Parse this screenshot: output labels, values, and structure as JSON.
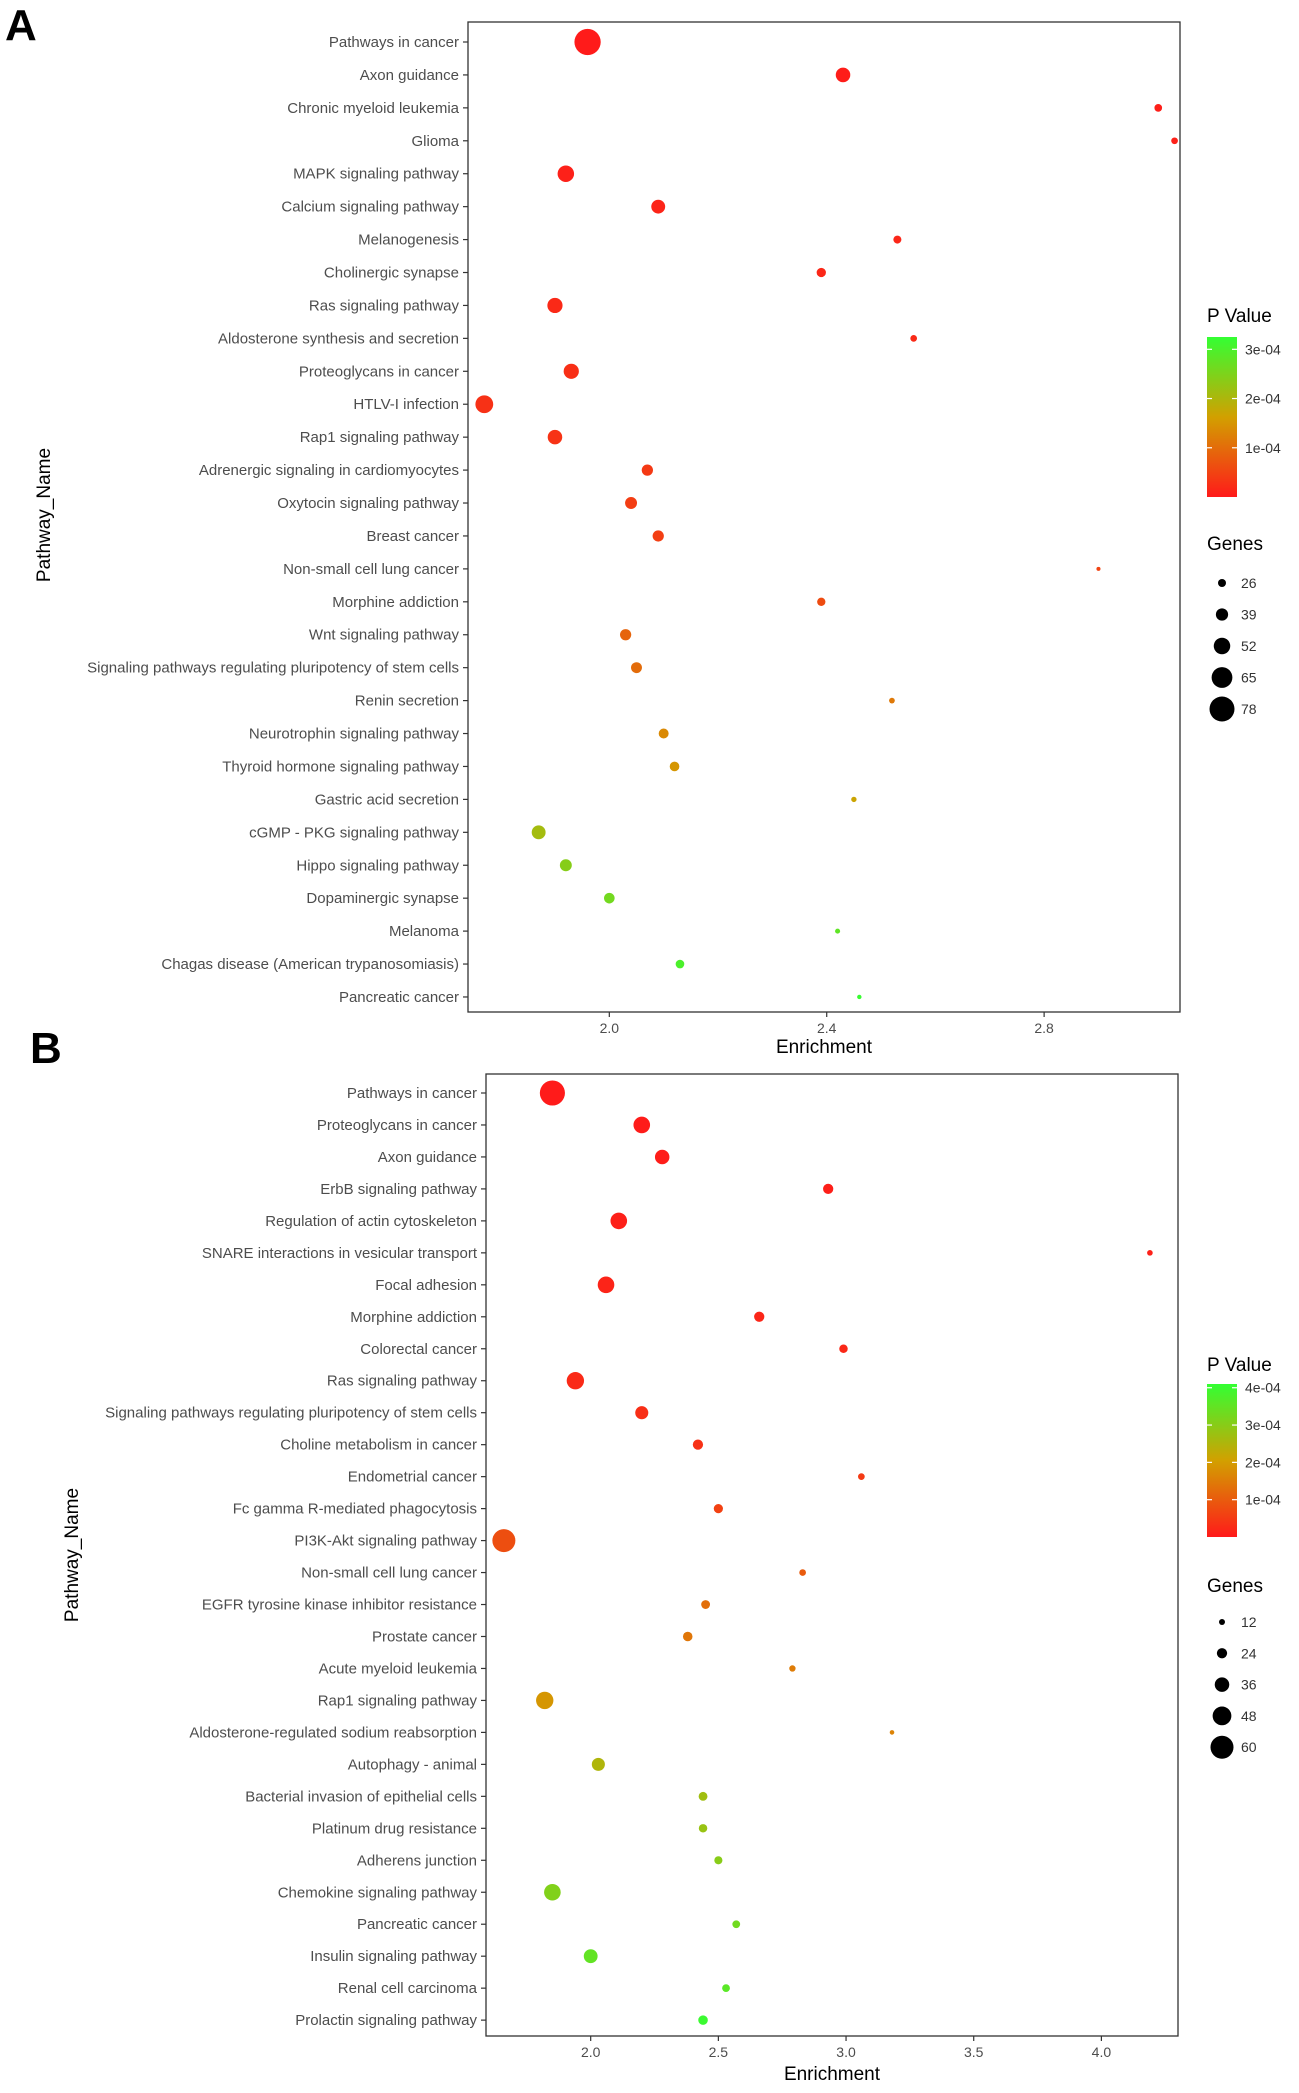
{
  "chart_data": [
    {
      "panel": "A",
      "type": "scatter",
      "title": "",
      "xlabel": "Enrichment",
      "ylabel": "Pathway_Name",
      "xlim": [
        1.74,
        3.05
      ],
      "xticks": [
        2.0,
        2.4,
        2.8
      ],
      "xtick_labels": [
        "2.0",
        "2.4",
        "2.8"
      ],
      "grid": false,
      "legend_position": "right",
      "color_legend": {
        "title": "P Value",
        "low_color": "#ff1a1a",
        "mid_color": "#d2a000",
        "high_color": "#33ff33",
        "pmax": 0.000325,
        "ticks": [
          0.0001,
          0.0002,
          0.0003
        ],
        "labels": [
          "1e-04",
          "2e-04",
          "3e-04"
        ]
      },
      "size_legend": {
        "title": "Genes",
        "values": [
          26,
          39,
          52,
          65,
          78
        ],
        "labels": [
          "26",
          "39",
          "52",
          "65",
          "78"
        ]
      },
      "points": [
        {
          "pathway": "Pathways in cancer",
          "enrichment": 1.96,
          "genes": 82,
          "p_value": 1e-06
        },
        {
          "pathway": "Axon guidance",
          "enrichment": 2.43,
          "genes": 46,
          "p_value": 4e-06
        },
        {
          "pathway": "Chronic myeloid leukemia",
          "enrichment": 3.01,
          "genes": 25,
          "p_value": 6e-06
        },
        {
          "pathway": "Glioma",
          "enrichment": 3.04,
          "genes": 22,
          "p_value": 8e-06
        },
        {
          "pathway": "MAPK signaling pathway",
          "enrichment": 1.92,
          "genes": 52,
          "p_value": 9e-06
        },
        {
          "pathway": "Calcium signaling pathway",
          "enrichment": 2.09,
          "genes": 44,
          "p_value": 1.2e-05
        },
        {
          "pathway": "Melanogenesis",
          "enrichment": 2.53,
          "genes": 26,
          "p_value": 1.4e-05
        },
        {
          "pathway": "Cholinergic synapse",
          "enrichment": 2.39,
          "genes": 30,
          "p_value": 1.6e-05
        },
        {
          "pathway": "Ras signaling pathway",
          "enrichment": 1.9,
          "genes": 48,
          "p_value": 1.8e-05
        },
        {
          "pathway": "Aldosterone synthesis and secretion",
          "enrichment": 2.56,
          "genes": 22,
          "p_value": 2e-05
        },
        {
          "pathway": "Proteoglycans in cancer",
          "enrichment": 1.93,
          "genes": 48,
          "p_value": 2.5e-05
        },
        {
          "pathway": "HTLV-I infection",
          "enrichment": 1.77,
          "genes": 56,
          "p_value": 2.8e-05
        },
        {
          "pathway": "Rap1 signaling pathway",
          "enrichment": 1.9,
          "genes": 46,
          "p_value": 3e-05
        },
        {
          "pathway": "Adrenergic signaling in cardiomyocytes",
          "enrichment": 2.07,
          "genes": 36,
          "p_value": 3.8e-05
        },
        {
          "pathway": "Oxytocin signaling pathway",
          "enrichment": 2.04,
          "genes": 38,
          "p_value": 4.2e-05
        },
        {
          "pathway": "Breast cancer",
          "enrichment": 2.09,
          "genes": 36,
          "p_value": 4.5e-05
        },
        {
          "pathway": "Non-small cell lung cancer",
          "enrichment": 2.9,
          "genes": 14,
          "p_value": 5e-05
        },
        {
          "pathway": "Morphine addiction",
          "enrichment": 2.39,
          "genes": 27,
          "p_value": 6e-05
        },
        {
          "pathway": "Wnt signaling pathway",
          "enrichment": 2.03,
          "genes": 36,
          "p_value": 9e-05
        },
        {
          "pathway": "Signaling pathways regulating pluripotency of stem cells",
          "enrichment": 2.05,
          "genes": 35,
          "p_value": 0.0001
        },
        {
          "pathway": "Renin secretion",
          "enrichment": 2.52,
          "genes": 19,
          "p_value": 0.000115
        },
        {
          "pathway": "Neurotrophin signaling pathway",
          "enrichment": 2.1,
          "genes": 32,
          "p_value": 0.000135
        },
        {
          "pathway": "Thyroid hormone signaling pathway",
          "enrichment": 2.12,
          "genes": 31,
          "p_value": 0.00015
        },
        {
          "pathway": "Gastric acid secretion",
          "enrichment": 2.45,
          "genes": 18,
          "p_value": 0.00017
        },
        {
          "pathway": "cGMP - PKG signaling pathway",
          "enrichment": 1.87,
          "genes": 44,
          "p_value": 0.00021
        },
        {
          "pathway": "Hippo signaling pathway",
          "enrichment": 1.92,
          "genes": 38,
          "p_value": 0.00024
        },
        {
          "pathway": "Dopaminergic synapse",
          "enrichment": 2.0,
          "genes": 34,
          "p_value": 0.00026
        },
        {
          "pathway": "Melanoma",
          "enrichment": 2.42,
          "genes": 17,
          "p_value": 0.00028
        },
        {
          "pathway": "Chagas disease (American trypanosomiasis)",
          "enrichment": 2.13,
          "genes": 28,
          "p_value": 0.0003
        },
        {
          "pathway": "Pancreatic cancer",
          "enrichment": 2.46,
          "genes": 15,
          "p_value": 0.00032
        }
      ]
    },
    {
      "panel": "B",
      "type": "scatter",
      "title": "",
      "xlabel": "Enrichment",
      "ylabel": "Pathway_Name",
      "xlim": [
        1.59,
        4.3
      ],
      "xticks": [
        2.0,
        2.5,
        3.0,
        3.5,
        4.0
      ],
      "xtick_labels": [
        "2.0",
        "2.5",
        "3.0",
        "3.5",
        "4.0"
      ],
      "grid": false,
      "legend_position": "right",
      "color_legend": {
        "title": "P Value",
        "low_color": "#ff1a1a",
        "mid_color": "#d2a000",
        "high_color": "#33ff33",
        "pmax": 0.00041,
        "ticks": [
          0.0001,
          0.0002,
          0.0003,
          0.0004
        ],
        "labels": [
          "1e-04",
          "2e-04",
          "3e-04",
          "4e-04"
        ]
      },
      "size_legend": {
        "title": "Genes",
        "values": [
          12,
          24,
          36,
          48,
          60
        ],
        "labels": [
          "12",
          "24",
          "36",
          "48",
          "60"
        ]
      },
      "points": [
        {
          "pathway": "Pathways in cancer",
          "enrichment": 1.85,
          "genes": 66,
          "p_value": 1e-06
        },
        {
          "pathway": "Proteoglycans in cancer",
          "enrichment": 2.2,
          "genes": 42,
          "p_value": 3e-06
        },
        {
          "pathway": "Axon guidance",
          "enrichment": 2.28,
          "genes": 36,
          "p_value": 5e-06
        },
        {
          "pathway": "ErbB signaling pathway",
          "enrichment": 2.93,
          "genes": 24,
          "p_value": 7e-06
        },
        {
          "pathway": "Regulation of actin cytoskeleton",
          "enrichment": 2.11,
          "genes": 42,
          "p_value": 9e-06
        },
        {
          "pathway": "SNARE interactions in vesicular transport",
          "enrichment": 4.19,
          "genes": 11,
          "p_value": 1.1e-05
        },
        {
          "pathway": "Focal adhesion",
          "enrichment": 2.06,
          "genes": 42,
          "p_value": 1.5e-05
        },
        {
          "pathway": "Morphine addiction",
          "enrichment": 2.66,
          "genes": 24,
          "p_value": 1.8e-05
        },
        {
          "pathway": "Colorectal cancer",
          "enrichment": 2.99,
          "genes": 19,
          "p_value": 2.2e-05
        },
        {
          "pathway": "Ras signaling pathway",
          "enrichment": 1.94,
          "genes": 44,
          "p_value": 2.5e-05
        },
        {
          "pathway": "Signaling pathways regulating pluripotency of stem cells",
          "enrichment": 2.2,
          "genes": 32,
          "p_value": 3e-05
        },
        {
          "pathway": "Choline metabolism in cancer",
          "enrichment": 2.42,
          "genes": 24,
          "p_value": 3.5e-05
        },
        {
          "pathway": "Endometrial cancer",
          "enrichment": 3.06,
          "genes": 14,
          "p_value": 5e-05
        },
        {
          "pathway": "Fc gamma R-mediated phagocytosis",
          "enrichment": 2.5,
          "genes": 21,
          "p_value": 6e-05
        },
        {
          "pathway": "PI3K-Akt signaling pathway",
          "enrichment": 1.66,
          "genes": 60,
          "p_value": 8e-05
        },
        {
          "pathway": "Non-small cell lung cancer",
          "enrichment": 2.83,
          "genes": 14,
          "p_value": 0.0001
        },
        {
          "pathway": "EGFR tyrosine kinase inhibitor resistance",
          "enrichment": 2.45,
          "genes": 20,
          "p_value": 0.00013
        },
        {
          "pathway": "Prostate cancer",
          "enrichment": 2.38,
          "genes": 22,
          "p_value": 0.00014
        },
        {
          "pathway": "Acute myeloid leukemia",
          "enrichment": 2.79,
          "genes": 13,
          "p_value": 0.00015
        },
        {
          "pathway": "Rap1 signaling pathway",
          "enrichment": 1.82,
          "genes": 44,
          "p_value": 0.00019
        },
        {
          "pathway": "Aldosterone-regulated sodium reabsorption",
          "enrichment": 3.18,
          "genes": 8,
          "p_value": 0.00016
        },
        {
          "pathway": "Autophagy - animal",
          "enrichment": 2.03,
          "genes": 32,
          "p_value": 0.00025
        },
        {
          "pathway": "Bacterial invasion of epithelial cells",
          "enrichment": 2.44,
          "genes": 20,
          "p_value": 0.00027
        },
        {
          "pathway": "Platinum drug resistance",
          "enrichment": 2.44,
          "genes": 19,
          "p_value": 0.00028
        },
        {
          "pathway": "Adherens junction",
          "enrichment": 2.5,
          "genes": 18,
          "p_value": 0.0003
        },
        {
          "pathway": "Chemokine signaling pathway",
          "enrichment": 1.85,
          "genes": 42,
          "p_value": 0.00031
        },
        {
          "pathway": "Pancreatic cancer",
          "enrichment": 2.57,
          "genes": 17,
          "p_value": 0.00033
        },
        {
          "pathway": "Insulin signaling pathway",
          "enrichment": 2.0,
          "genes": 34,
          "p_value": 0.00035
        },
        {
          "pathway": "Renal cell carcinoma",
          "enrichment": 2.53,
          "genes": 17,
          "p_value": 0.00036
        },
        {
          "pathway": "Prolactin signaling pathway",
          "enrichment": 2.44,
          "genes": 22,
          "p_value": 0.0004
        }
      ]
    }
  ]
}
